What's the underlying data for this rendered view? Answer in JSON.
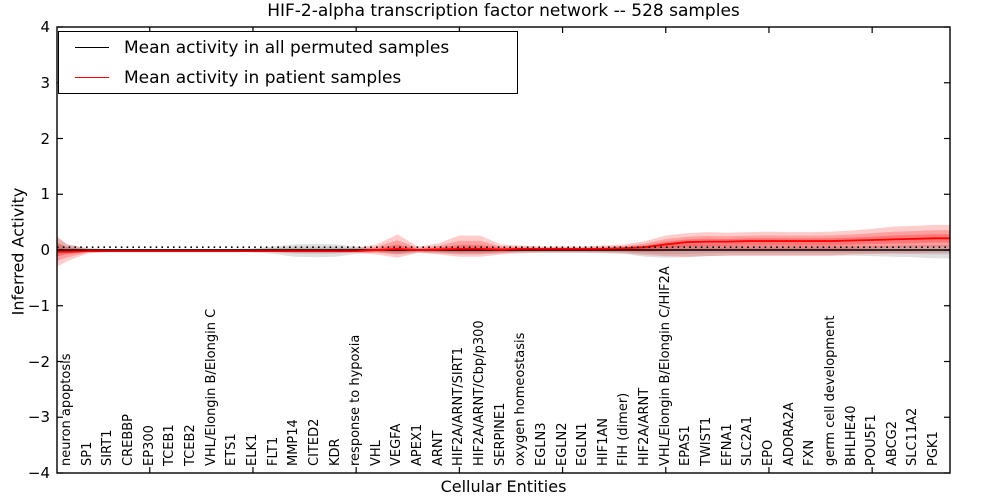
{
  "figure": {
    "background": "#ffffff",
    "frame_color": "#000000"
  },
  "legend": {
    "items": [
      {
        "label": "Mean activity in all permuted samples",
        "color": "#000000"
      },
      {
        "label": "Mean activity in patient samples",
        "color": "#ff0000"
      }
    ]
  },
  "chart_data": {
    "type": "line",
    "title": "HIF-2-alpha transcription factor network -- 528 samples",
    "xlabel": "Cellular Entities",
    "ylabel": "Inferred Activity",
    "ylim": [
      -4,
      4
    ],
    "yticks": [
      4,
      3,
      2,
      1,
      0,
      "−1",
      "−2",
      "−3",
      "−4"
    ],
    "ytick_values": [
      4,
      3,
      2,
      1,
      0,
      -1,
      -2,
      -3,
      -4
    ],
    "x_tick_indices": [
      4,
      9,
      14,
      19,
      24,
      29,
      34,
      39
    ],
    "grid": false,
    "legend_position": "upper left",
    "categories": [
      "neuron apoptosis",
      "SP1",
      "SIRT1",
      "CREBBP",
      "EP300",
      "TCEB1",
      "TCEB2",
      "VHL/Elongin B/Elongin C",
      "ETS1",
      "ELK1",
      "FLT1",
      "MMP14",
      "CITED2",
      "KDR",
      "response to hypoxia",
      "VHL",
      "VEGFA",
      "APEX1",
      "ARNT",
      "HIF2A/ARNT/SIRT1",
      "HIF2A/ARNT/Cbp/p300",
      "SERPINE1",
      "oxygen homeostasis",
      "EGLN3",
      "EGLN2",
      "EGLN1",
      "HIF1AN",
      "FIH (dimer)",
      "HIF2A/ARNT",
      "VHL/Elongin B/Elongin C/HIF2A",
      "EPAS1",
      "TWIST1",
      "EFNA1",
      "SLC2A1",
      "EPO",
      "ADORA2A",
      "FXN",
      "germ cell development",
      "BHLHE40",
      "POU5F1",
      "ABCG2",
      "SLC11A2",
      "PGK1"
    ],
    "series": [
      {
        "name": "Mean activity in all permuted samples",
        "color": "#000000",
        "style": "solid",
        "values": [
          0,
          0,
          0,
          0,
          0,
          0,
          0,
          0,
          0,
          0,
          0,
          0,
          0,
          0,
          0,
          0,
          0,
          0,
          0,
          0,
          0,
          0,
          0,
          0,
          0,
          0,
          0,
          0,
          0,
          0,
          0,
          0,
          0,
          0,
          0,
          0,
          0,
          0,
          0,
          0,
          0,
          0,
          0
        ]
      },
      {
        "name": "Zero reference (dotted)",
        "color": "#000000",
        "style": "dotted",
        "values": [
          0.05,
          0.05,
          0.05,
          0.05,
          0.05,
          0.05,
          0.05,
          0.05,
          0.05,
          0.05,
          0.05,
          0.05,
          0.05,
          0.05,
          0.05,
          0.05,
          0.05,
          0.05,
          0.05,
          0.05,
          0.05,
          0.05,
          0.05,
          0.05,
          0.05,
          0.05,
          0.05,
          0.05,
          0.05,
          0.05,
          0.05,
          0.05,
          0.05,
          0.05,
          0.05,
          0.05,
          0.05,
          0.05,
          0.05,
          0.05,
          0.05,
          0.05,
          0.05
        ]
      },
      {
        "name": "Mean activity in patient samples",
        "color": "#ff0000",
        "style": "solid",
        "values": [
          -0.03,
          -0.02,
          -0.02,
          -0.02,
          -0.02,
          -0.02,
          -0.02,
          -0.02,
          -0.02,
          -0.02,
          -0.02,
          -0.02,
          -0.02,
          -0.02,
          -0.02,
          0.0,
          0.02,
          0.0,
          0.01,
          0.02,
          0.02,
          0.01,
          0.02,
          0.02,
          0.02,
          0.02,
          0.02,
          0.03,
          0.05,
          0.1,
          0.14,
          0.15,
          0.15,
          0.16,
          0.16,
          0.16,
          0.16,
          0.16,
          0.17,
          0.18,
          0.19,
          0.2,
          0.21
        ]
      }
    ],
    "bands": {
      "permuted": {
        "fill": "rgba(0,0,0,0.12)",
        "upper": [
          0.1,
          0.03,
          0.02,
          0.02,
          0.02,
          0.02,
          0.02,
          0.02,
          0.02,
          0.03,
          0.06,
          0.1,
          0.11,
          0.1,
          0.06,
          0.03,
          0.05,
          0.03,
          0.04,
          0.05,
          0.05,
          0.04,
          0.03,
          0.03,
          0.03,
          0.03,
          0.04,
          0.05,
          0.08,
          0.1,
          0.1,
          0.09,
          0.08,
          0.08,
          0.08,
          0.08,
          0.08,
          0.08,
          0.08,
          0.08,
          0.08,
          0.09,
          0.09
        ],
        "lower": [
          -0.06,
          -0.03,
          -0.03,
          -0.03,
          -0.03,
          -0.03,
          -0.03,
          -0.03,
          -0.03,
          -0.04,
          -0.07,
          -0.12,
          -0.13,
          -0.12,
          -0.07,
          -0.04,
          -0.08,
          -0.05,
          -0.06,
          -0.08,
          -0.08,
          -0.06,
          -0.05,
          -0.05,
          -0.05,
          -0.05,
          -0.06,
          -0.07,
          -0.12,
          -0.14,
          -0.13,
          -0.11,
          -0.1,
          -0.1,
          -0.1,
          -0.1,
          -0.1,
          -0.1,
          -0.1,
          -0.11,
          -0.12,
          -0.13,
          -0.15
        ],
        "edge_upper": 0.22,
        "edge_lower": -0.1
      },
      "patient": {
        "fill": "rgba(255,0,0,0.20)",
        "upper": [
          0.1,
          0.03,
          0.02,
          0.02,
          0.02,
          0.02,
          0.02,
          0.02,
          0.02,
          0.02,
          0.03,
          0.03,
          0.03,
          0.03,
          0.04,
          0.1,
          0.28,
          0.06,
          0.12,
          0.26,
          0.26,
          0.1,
          0.08,
          0.06,
          0.06,
          0.06,
          0.08,
          0.1,
          0.16,
          0.26,
          0.3,
          0.32,
          0.31,
          0.32,
          0.33,
          0.32,
          0.32,
          0.33,
          0.35,
          0.38,
          0.42,
          0.43,
          0.45
        ],
        "lower": [
          -0.2,
          -0.06,
          -0.04,
          -0.04,
          -0.04,
          -0.04,
          -0.04,
          -0.04,
          -0.04,
          -0.04,
          -0.04,
          -0.05,
          -0.05,
          -0.05,
          -0.05,
          -0.08,
          -0.14,
          -0.05,
          -0.08,
          -0.12,
          -0.12,
          -0.08,
          -0.06,
          -0.05,
          -0.05,
          -0.05,
          -0.05,
          -0.06,
          -0.09,
          -0.11,
          -0.12,
          -0.11,
          -0.1,
          -0.1,
          -0.1,
          -0.1,
          -0.1,
          -0.1,
          -0.08,
          -0.07,
          -0.06,
          -0.06,
          -0.05
        ],
        "edge_upper": 0.25,
        "edge_lower": -0.3
      },
      "patient_edge_mean": -0.03
    }
  }
}
